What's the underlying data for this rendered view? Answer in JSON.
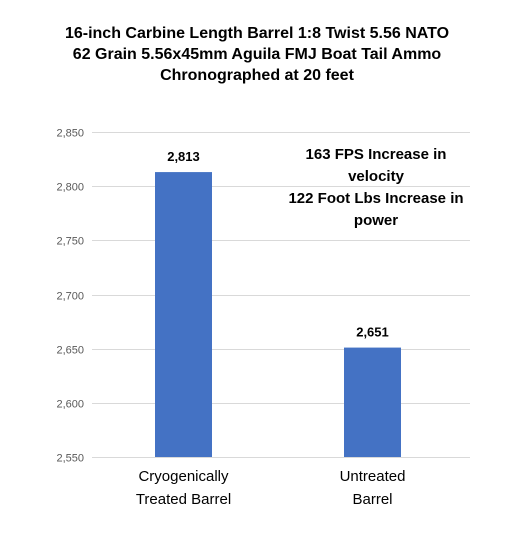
{
  "chart_data": {
    "type": "bar",
    "title": [
      "16-inch Carbine Length Barrel 1:8 Twist 5.56 NATO",
      "62 Grain 5.56x45mm Aguila FMJ Boat Tail Ammo",
      "Chronographed at 20 feet"
    ],
    "annotation": [
      "163 FPS Increase in",
      "velocity",
      "122 Foot Lbs Increase in",
      "power"
    ],
    "categories": [
      [
        "Cryogenically",
        "Treated Barrel"
      ],
      [
        "Untreated",
        "Barrel"
      ]
    ],
    "values": [
      2813,
      2651
    ],
    "data_labels": [
      "2,813",
      "2,651"
    ],
    "ylim": [
      2550,
      2850
    ],
    "yticks": [
      2550,
      2600,
      2650,
      2700,
      2750,
      2800,
      2850
    ],
    "ytick_labels": [
      "2,550",
      "2,600",
      "2,650",
      "2,700",
      "2,750",
      "2,800",
      "2,850"
    ],
    "grid": true,
    "legend": "none",
    "colors": {
      "bar": "#4472c4",
      "grid": "#d9d9d9",
      "tick_text": "#595959"
    }
  }
}
